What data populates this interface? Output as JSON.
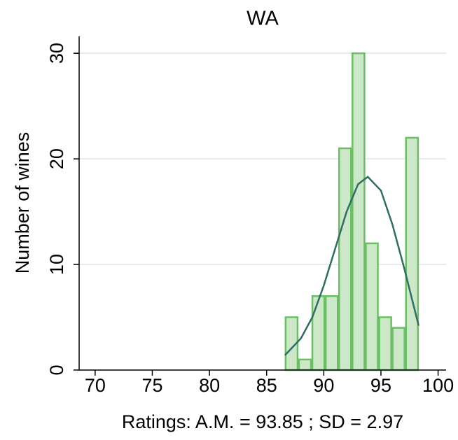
{
  "chart_data": {
    "type": "histogram",
    "title": "WA",
    "x_label": "Ratings: A.M. = 93.85 ; SD = 2.97",
    "y_label": "Number of wines",
    "bins": [
      86.6,
      87.77,
      88.94,
      90.11,
      91.28,
      92.45,
      93.62,
      94.79,
      95.96,
      97.13,
      98.3
    ],
    "values": [
      5,
      1,
      7,
      7,
      21,
      30,
      12,
      5,
      4,
      22
    ],
    "color": "#cce8c8",
    "edge_color": "#6abf63",
    "curve": {
      "color": "#2f6e63",
      "x": [
        86.6,
        88,
        89,
        90,
        91,
        92,
        93,
        93.85,
        95,
        96,
        97,
        98.3
      ],
      "values": [
        1.4,
        3.0,
        5.0,
        8.0,
        11.5,
        15.0,
        17.6,
        18.3,
        17.0,
        13.8,
        9.8,
        4.2
      ]
    },
    "xlim": [
      68.6,
      100.7
    ],
    "ylim": [
      0,
      31.6
    ],
    "xticks": [
      70,
      75,
      80,
      85,
      90,
      95,
      100
    ],
    "yticks": [
      0,
      10,
      20,
      30
    ],
    "grid": true
  }
}
